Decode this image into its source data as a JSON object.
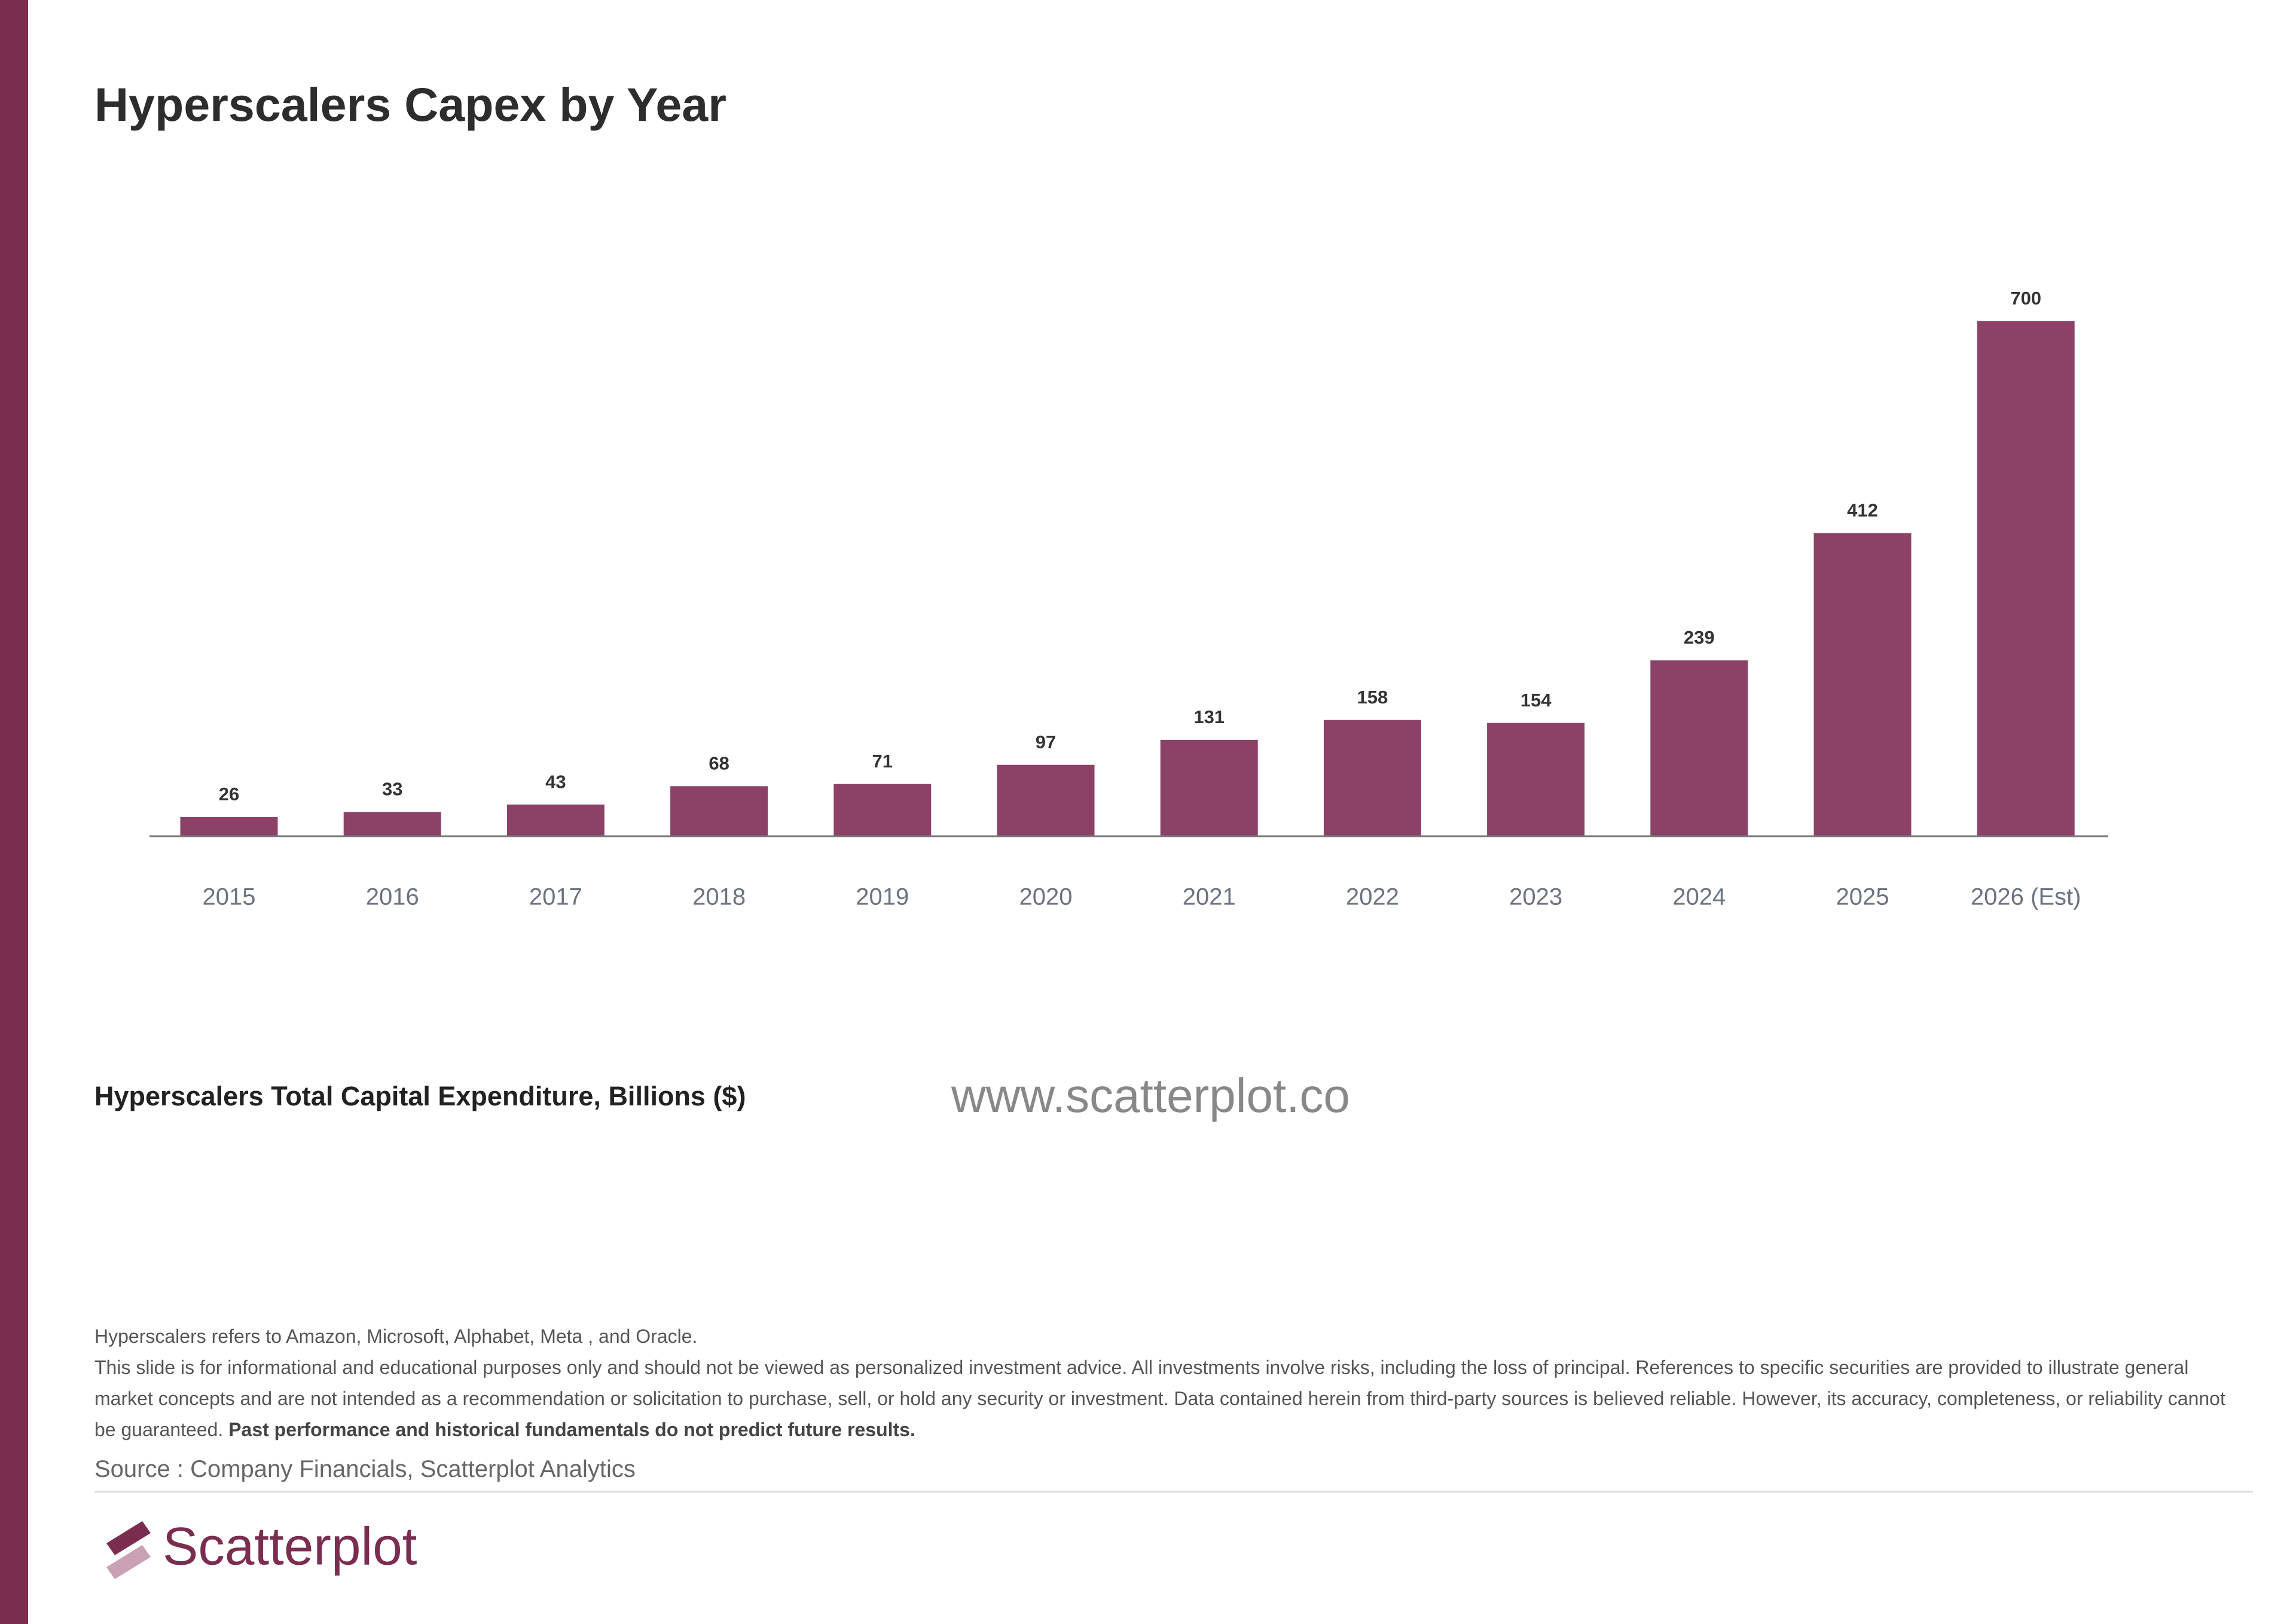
{
  "chart_data": {
    "type": "bar",
    "title": "Hyperscalers Capex by Year",
    "categories": [
      "2015",
      "2016",
      "2017",
      "2018",
      "2019",
      "2020",
      "2021",
      "2022",
      "2023",
      "2024",
      "2025",
      "2026 (Est)"
    ],
    "values": [
      26,
      33,
      43,
      68,
      71,
      97,
      131,
      158,
      154,
      239,
      412,
      700
    ],
    "color": "#8c4266",
    "x_label": "Hyperscalers Total Capital Expenditure, Billions ($)"
  },
  "watermark": "www.scatterplot.co",
  "notes": {
    "definition": "Hyperscalers refers to Amazon, Microsoft, Alphabet, Meta , and Oracle.",
    "disclaimer": "This slide is for informational and educational purposes only and should not be viewed as personalized investment advice. All investments involve risks, including the loss of principal. References to specific securities are provided to illustrate general market concepts and are not intended as a recommendation or solicitation to purchase, sell, or hold any security or investment. Data contained herein from third-party sources is believed reliable. However, its accuracy, completeness, or reliability cannot be guaranteed.",
    "warning": "Past performance and historical fundamentals do not predict future results."
  },
  "source": "Source : Company Financials, Scatterplot Analytics",
  "brand": "Scatterplot"
}
